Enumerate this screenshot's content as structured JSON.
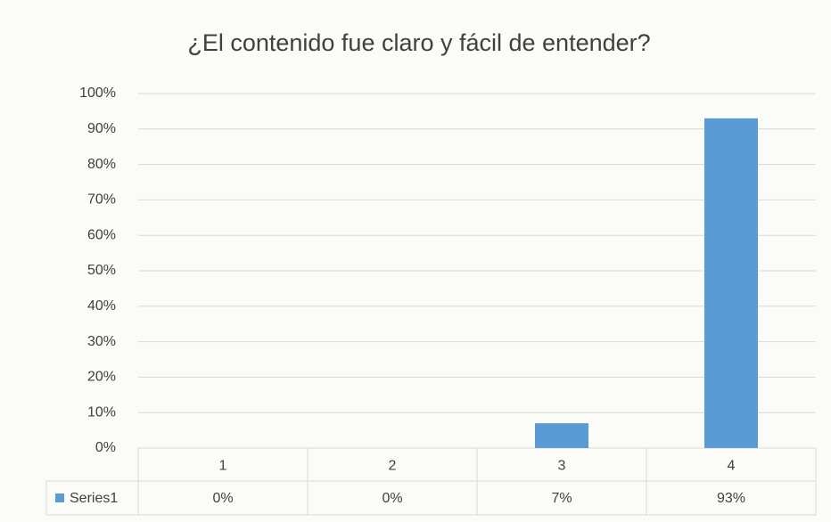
{
  "chart_data": {
    "type": "bar",
    "title": "¿El contenido fue claro y fácil de entender?",
    "categories": [
      "1",
      "2",
      "3",
      "4"
    ],
    "series": [
      {
        "name": "Series1",
        "color": "#5b9bd5",
        "values": [
          0,
          0,
          7,
          93
        ],
        "value_labels": [
          "0%",
          "0%",
          "7%",
          "93%"
        ]
      }
    ],
    "ylim": [
      0,
      100
    ],
    "yticks": [
      {
        "value": 0,
        "label": "0%"
      },
      {
        "value": 10,
        "label": "10%"
      },
      {
        "value": 20,
        "label": "20%"
      },
      {
        "value": 30,
        "label": "30%"
      },
      {
        "value": 40,
        "label": "40%"
      },
      {
        "value": 50,
        "label": "50%"
      },
      {
        "value": 60,
        "label": "60%"
      },
      {
        "value": 70,
        "label": "70%"
      },
      {
        "value": 80,
        "label": "80%"
      },
      {
        "value": 90,
        "label": "90%"
      },
      {
        "value": 100,
        "label": "100%"
      }
    ],
    "grid": true,
    "data_table": true
  }
}
